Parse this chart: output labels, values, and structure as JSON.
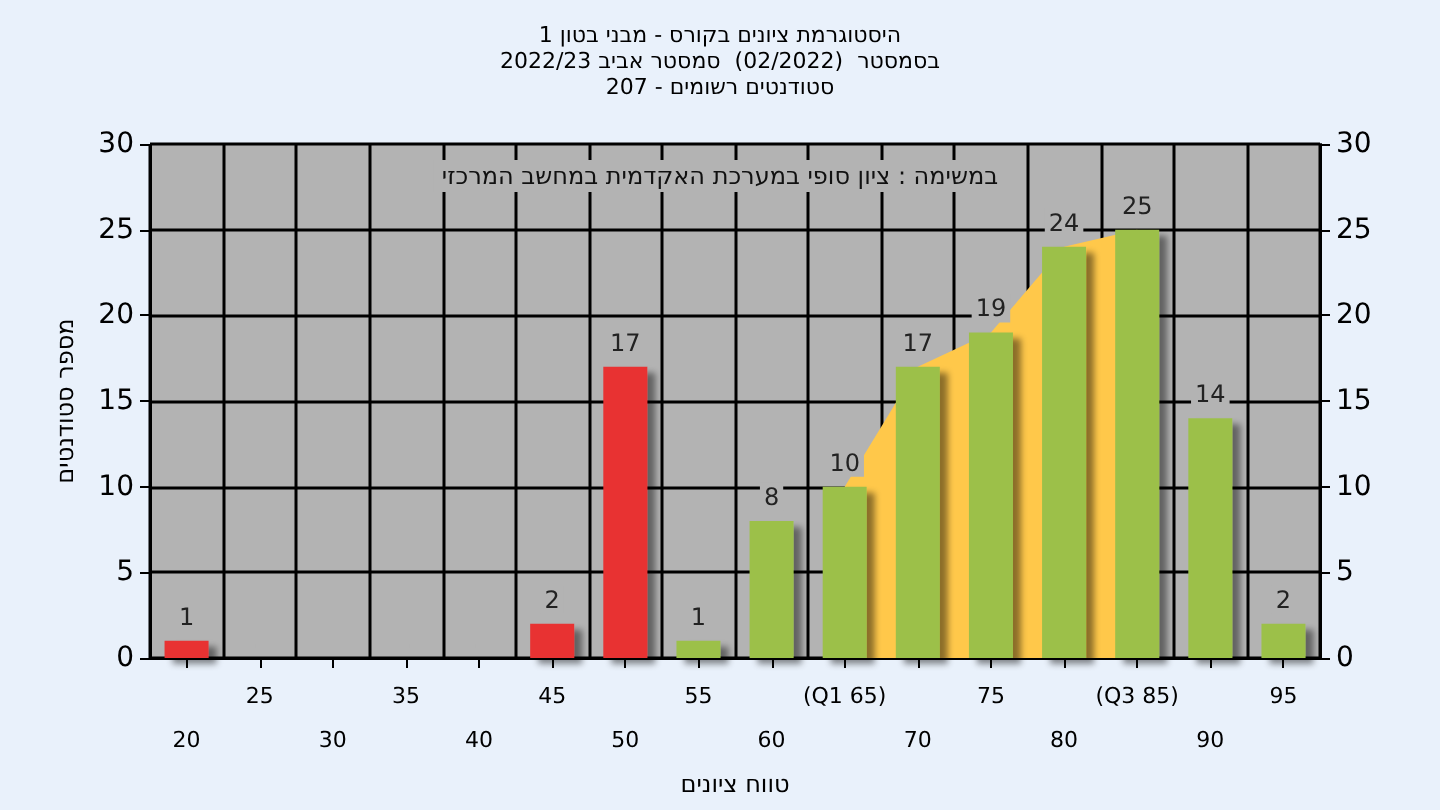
{
  "chart_data": {
    "type": "bar",
    "title": "היסטוגרמת ציונים בקורס - מבני בטון 1\nבסמסטר  (02/2022)  סמסטר אביב 2022/23\nסטודנטים רשומים - 207",
    "xlabel": "טווח ציונים",
    "ylabel": "מספר סטודנטים",
    "annotations": [
      "במשימה : ציון סופי במערכת האקדמית במחשב המרכזי"
    ],
    "categories": [
      "20",
      "25",
      "30",
      "35",
      "40",
      "45",
      "50",
      "55",
      "60",
      "(Q1 65)",
      "70",
      "75",
      "80",
      "(Q3 85)",
      "90",
      "95"
    ],
    "series": [
      {
        "type": "area",
        "color": "#ffc84a",
        "values": [
          null,
          null,
          null,
          null,
          null,
          null,
          null,
          null,
          null,
          10,
          17,
          19,
          24,
          25,
          null,
          null
        ]
      },
      {
        "colors": [
          "#e83030",
          "#e83030",
          "#e83030",
          "#e83030",
          "#e83030",
          "#e83030",
          "#e83030",
          "#9cc04a",
          "#9cc04a",
          "#9cc04a",
          "#9cc04a",
          "#9cc04a",
          "#9cc04a",
          "#9cc04a",
          "#9cc04a",
          "#9cc04a"
        ],
        "values": [
          1,
          0,
          0,
          0,
          0,
          2,
          17,
          1,
          8,
          10,
          17,
          19,
          24,
          25,
          14,
          2
        ],
        "value_labels": [
          "1",
          null,
          null,
          null,
          null,
          "2",
          "17",
          "1",
          "8",
          "10",
          "17",
          "19",
          "24",
          "25",
          "14",
          "2"
        ]
      }
    ],
    "ylim": [
      0,
      30
    ],
    "yticks": [
      0,
      5,
      10,
      15,
      20,
      25,
      30
    ],
    "y2lim": [
      0,
      30
    ],
    "y2ticks": [
      0,
      5,
      10,
      15,
      20,
      25,
      30
    ],
    "grid": true
  }
}
